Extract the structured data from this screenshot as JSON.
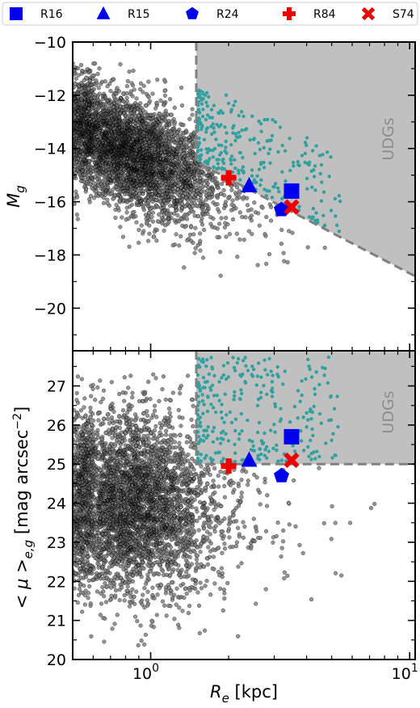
{
  "colors": {
    "cloud": "#000000",
    "udg_points": "#1a9a9a",
    "udg_region": "#c0c0c0",
    "boundary": "#808080",
    "blue_markers": "#0000ee",
    "red_markers": "#ee0000"
  },
  "legend": {
    "placement": "top",
    "entries": [
      {
        "label": "R16",
        "marker": "square",
        "color": "#0000ee"
      },
      {
        "label": "R15",
        "marker": "triangle",
        "color": "#0000ee"
      },
      {
        "label": "R24",
        "marker": "pentagon",
        "color": "#0000ee"
      },
      {
        "label": "R84",
        "marker": "plus",
        "color": "#ee0000"
      },
      {
        "label": "S74",
        "marker": "x",
        "color": "#ee0000"
      }
    ]
  },
  "chart_data": [
    {
      "type": "scatter",
      "xscale": "log",
      "xlim": [
        0.5,
        10.5
      ],
      "ylim": [
        -10,
        -21.6
      ],
      "y_inverted": true,
      "ylabel": "M_g",
      "ylabel_main": "M",
      "ylabel_sub": "g",
      "yticks": [
        "−10",
        "−12",
        "−14",
        "−16",
        "−18",
        "−20"
      ],
      "ytick_values": [
        -10,
        -12,
        -14,
        -16,
        -18,
        -20
      ],
      "region_label": "UDGs",
      "udg_boundary": [
        [
          1.5,
          -10
        ],
        [
          1.5,
          -14.5
        ],
        [
          10.5,
          -18.8
        ]
      ],
      "cloud_point_count": 4500,
      "udg_point_count": 280,
      "highlight_points": [
        {
          "name": "R16",
          "re": 3.5,
          "value": -15.6
        },
        {
          "name": "R15",
          "re": 2.4,
          "value": -15.4
        },
        {
          "name": "R24",
          "re": 3.2,
          "value": -16.3
        },
        {
          "name": "R84",
          "re": 2.0,
          "value": -15.1
        },
        {
          "name": "S74",
          "re": 3.5,
          "value": -16.2
        }
      ]
    },
    {
      "type": "scatter",
      "xscale": "log",
      "xlim": [
        0.5,
        10.5
      ],
      "ylim": [
        20,
        27.9
      ],
      "ylabel": "<μ>_{e,g} [mag arcsec^-2]",
      "ylabel_main": "< μ >",
      "ylabel_sub": "e,g",
      "ylabel_rest": " [mag arcsec",
      "ylabel_sup": "−2",
      "ylabel_end": "]",
      "yticks": [
        "20",
        "21",
        "22",
        "23",
        "24",
        "25",
        "26",
        "27"
      ],
      "ytick_values": [
        20,
        21,
        22,
        23,
        24,
        25,
        26,
        27
      ],
      "region_label": "UDGs",
      "udg_boundary": [
        [
          1.5,
          27.9
        ],
        [
          1.5,
          25.0
        ],
        [
          10.5,
          25.0
        ]
      ],
      "cloud_point_count": 4500,
      "udg_point_count": 280,
      "highlight_points": [
        {
          "name": "R16",
          "re": 3.5,
          "value": 25.7
        },
        {
          "name": "R15",
          "re": 2.4,
          "value": 25.1
        },
        {
          "name": "R24",
          "re": 3.2,
          "value": 24.7
        },
        {
          "name": "R84",
          "re": 2.0,
          "value": 24.95
        },
        {
          "name": "S74",
          "re": 3.5,
          "value": 25.1
        }
      ]
    }
  ],
  "xaxis": {
    "label_main": "R",
    "label_sub": "e",
    "label_rest": " [kpc]",
    "ticks": [
      {
        "value": 1,
        "base": "10",
        "exp": "0"
      },
      {
        "value": 10,
        "base": "10",
        "exp": "1"
      }
    ]
  }
}
